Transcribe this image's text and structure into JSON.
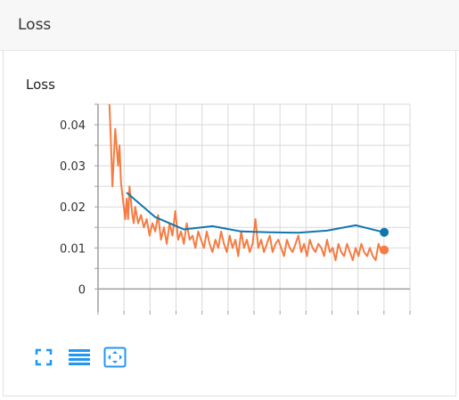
{
  "header": {
    "title": "Loss"
  },
  "chart_title": "Loss",
  "colors": {
    "raw": "#f57c42",
    "smoothed": "#1076b0",
    "grid": "#d9d9d9",
    "axis": "#9e9e9e",
    "toolbar_icon": "#2196f3"
  },
  "toolbar": {
    "icons": [
      "fullscreen-icon",
      "menu-lines-icon",
      "fit-domain-icon"
    ]
  },
  "chart_data": {
    "type": "line",
    "title": "Loss",
    "xlabel": "",
    "ylabel": "",
    "xlim": [
      0,
      10.9
    ],
    "ylim": [
      -0.006,
      0.045
    ],
    "y_ticks": [
      0,
      0.01,
      0.02,
      0.03,
      0.04
    ],
    "y_tick_labels": [
      "0",
      "0.01",
      "0.02",
      "0.03",
      "0.04"
    ],
    "x_ticks": [
      0,
      1,
      2,
      3,
      4,
      5,
      6,
      7,
      8,
      9,
      10
    ],
    "grid": true,
    "legend": "none",
    "series": [
      {
        "style": "raw",
        "x": [
          0.4,
          0.45,
          0.5,
          0.55,
          0.6,
          0.7,
          0.75,
          0.8,
          0.9,
          0.95,
          1.0,
          1.05,
          1.1,
          1.2,
          1.25,
          1.3,
          1.4,
          1.5,
          1.6,
          1.7,
          1.8,
          1.9,
          2.0,
          2.1,
          2.2,
          2.3,
          2.4,
          2.5,
          2.6,
          2.7,
          2.8,
          2.9,
          3.0,
          3.1,
          3.2,
          3.3,
          3.4,
          3.5,
          3.6,
          3.7,
          3.8,
          3.9,
          4.0,
          4.1,
          4.2,
          4.3,
          4.4,
          4.5,
          4.6,
          4.7,
          4.8,
          4.9,
          5.0,
          5.1,
          5.2,
          5.3,
          5.4,
          5.5,
          5.6,
          5.7,
          5.8,
          5.9,
          6.0,
          6.1,
          6.2,
          6.3,
          6.4,
          6.5,
          6.6,
          6.7,
          6.8,
          6.9,
          7.0,
          7.1,
          7.2,
          7.3,
          7.4,
          7.5,
          7.6,
          7.7,
          7.8,
          7.9,
          8.0,
          8.1,
          8.2,
          8.3,
          8.4,
          8.5,
          8.6,
          8.7,
          8.8,
          8.9,
          9.0,
          9.1,
          9.2,
          9.3,
          9.4,
          9.5,
          9.6,
          9.7,
          9.8,
          9.9,
          10.0
        ],
        "y": [
          0.047,
          0.036,
          0.025,
          0.032,
          0.039,
          0.03,
          0.035,
          0.026,
          0.02,
          0.017,
          0.022,
          0.017,
          0.025,
          0.018,
          0.016,
          0.02,
          0.016,
          0.018,
          0.015,
          0.017,
          0.013,
          0.016,
          0.014,
          0.018,
          0.012,
          0.015,
          0.011,
          0.016,
          0.013,
          0.019,
          0.012,
          0.014,
          0.011,
          0.016,
          0.012,
          0.013,
          0.01,
          0.014,
          0.012,
          0.01,
          0.014,
          0.011,
          0.009,
          0.012,
          0.01,
          0.014,
          0.011,
          0.009,
          0.013,
          0.01,
          0.012,
          0.008,
          0.014,
          0.01,
          0.012,
          0.009,
          0.011,
          0.017,
          0.01,
          0.012,
          0.009,
          0.011,
          0.013,
          0.009,
          0.011,
          0.012,
          0.01,
          0.008,
          0.012,
          0.01,
          0.009,
          0.011,
          0.013,
          0.009,
          0.011,
          0.008,
          0.012,
          0.01,
          0.009,
          0.011,
          0.01,
          0.008,
          0.012,
          0.009,
          0.01,
          0.007,
          0.011,
          0.009,
          0.008,
          0.011,
          0.009,
          0.007,
          0.01,
          0.008,
          0.011,
          0.009,
          0.008,
          0.01,
          0.008,
          0.007,
          0.011,
          0.009,
          0.0095
        ]
      },
      {
        "style": "smoothed",
        "x": [
          1.0,
          2.0,
          3.0,
          4.0,
          5.0,
          6.0,
          7.0,
          8.0,
          9.0,
          10.0
        ],
        "y": [
          0.0235,
          0.0175,
          0.0145,
          0.0153,
          0.014,
          0.0138,
          0.0137,
          0.0142,
          0.0155,
          0.0138
        ]
      }
    ]
  }
}
